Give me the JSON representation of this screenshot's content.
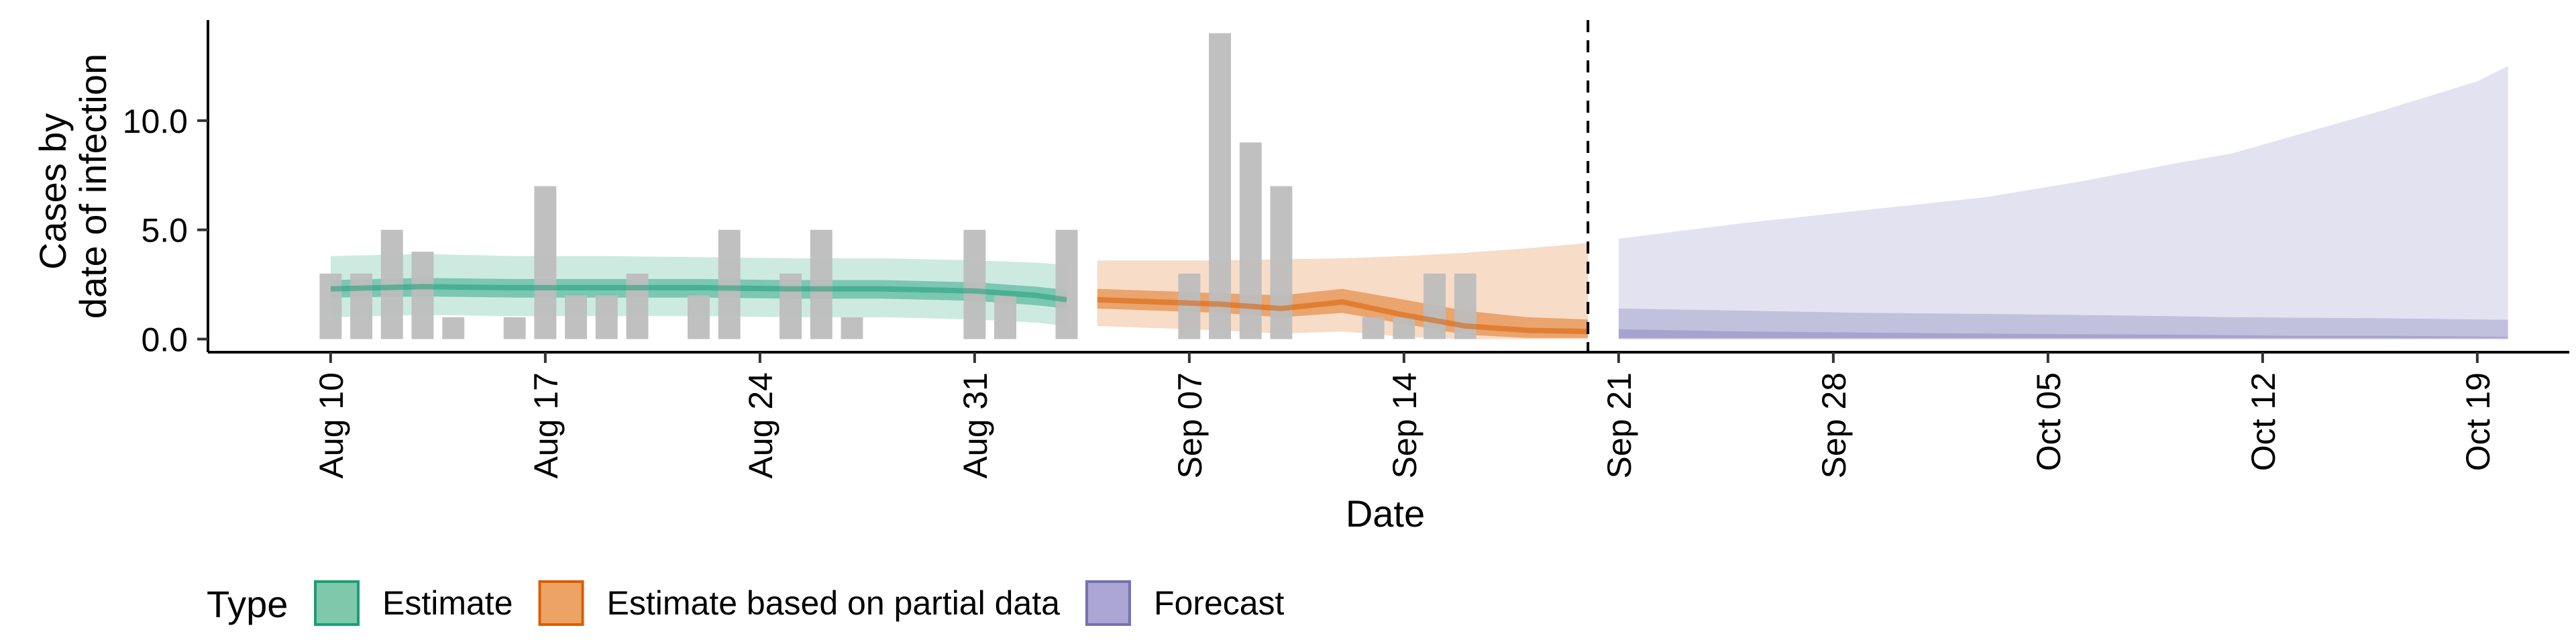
{
  "chart_data": {
    "type": "area",
    "xlabel": "Date",
    "ylabel": [
      "Cases by",
      "date of infection"
    ],
    "ylim": [
      -0.6,
      14.6
    ],
    "yticks": [
      0.0,
      5.0,
      10.0
    ],
    "ytick_labels": [
      "0.0",
      "5.0",
      "10.0"
    ],
    "xlim": [
      "2021-08-06",
      "2021-10-22"
    ],
    "xticks": [
      "2021-08-10",
      "2021-08-17",
      "2021-08-24",
      "2021-08-31",
      "2021-09-07",
      "2021-09-14",
      "2021-09-21",
      "2021-09-28",
      "2021-10-05",
      "2021-10-12",
      "2021-10-19"
    ],
    "xtick_labels": [
      "Aug 10",
      "Aug 17",
      "Aug 24",
      "Aug 31",
      "Sep 07",
      "Sep 14",
      "Sep 21",
      "Sep 28",
      "Oct 05",
      "Oct 12",
      "Oct 19"
    ],
    "vline_date": "2021-09-20",
    "legend": {
      "title": "Type",
      "position": "bottom",
      "items": [
        {
          "label": "Estimate",
          "fill": "#7FC8AC",
          "stroke": "#1B9E77"
        },
        {
          "label": "Estimate based on partial data",
          "fill": "#EEA366",
          "stroke": "#D95F02"
        },
        {
          "label": "Forecast",
          "fill": "#ABA6D3",
          "stroke": "#7570B3"
        }
      ]
    },
    "bars": {
      "color": "#BDBDBD",
      "dates": [
        "2021-08-10",
        "2021-08-11",
        "2021-08-12",
        "2021-08-13",
        "2021-08-14",
        "2021-08-15",
        "2021-08-16",
        "2021-08-17",
        "2021-08-18",
        "2021-08-19",
        "2021-08-20",
        "2021-08-21",
        "2021-08-22",
        "2021-08-23",
        "2021-08-24",
        "2021-08-25",
        "2021-08-26",
        "2021-08-27",
        "2021-08-28",
        "2021-08-29",
        "2021-08-30",
        "2021-08-31",
        "2021-09-01",
        "2021-09-02",
        "2021-09-03",
        "2021-09-04",
        "2021-09-05",
        "2021-09-06",
        "2021-09-07",
        "2021-09-08",
        "2021-09-09",
        "2021-09-10",
        "2021-09-11",
        "2021-09-12",
        "2021-09-13",
        "2021-09-14",
        "2021-09-15",
        "2021-09-16",
        "2021-09-17",
        "2021-09-18",
        "2021-09-19",
        "2021-09-20"
      ],
      "values": [
        3,
        3,
        5,
        4,
        1,
        0,
        1,
        7,
        2,
        2,
        3,
        0,
        2,
        5,
        0,
        3,
        5,
        1,
        0,
        0,
        0,
        5,
        2,
        0,
        5,
        0,
        0,
        0,
        3,
        14,
        9,
        7,
        0,
        0,
        1,
        1,
        3,
        3,
        0,
        0,
        0,
        0
      ]
    },
    "series": [
      {
        "name": "Estimate",
        "fill": "#1B9E77",
        "stroke": "#1B9E77",
        "dates": [
          "2021-08-10",
          "2021-08-13",
          "2021-08-16",
          "2021-08-19",
          "2021-08-22",
          "2021-08-25",
          "2021-08-28",
          "2021-08-31",
          "2021-09-02",
          "2021-09-03"
        ],
        "median": [
          2.3,
          2.4,
          2.35,
          2.35,
          2.35,
          2.3,
          2.3,
          2.2,
          2.0,
          1.8
        ],
        "lower_50": [
          1.9,
          1.95,
          1.9,
          1.9,
          1.9,
          1.85,
          1.85,
          1.75,
          1.55,
          1.4
        ],
        "upper_50": [
          2.7,
          2.8,
          2.75,
          2.75,
          2.75,
          2.7,
          2.7,
          2.6,
          2.4,
          2.25
        ],
        "lower_90": [
          1.0,
          1.1,
          1.05,
          1.05,
          1.05,
          1.0,
          1.0,
          0.9,
          0.75,
          0.6
        ],
        "upper_90": [
          3.8,
          3.9,
          3.8,
          3.8,
          3.75,
          3.7,
          3.7,
          3.6,
          3.5,
          3.4
        ]
      },
      {
        "name": "Estimate based on partial data",
        "fill": "#D95F02",
        "stroke": "#D95F02",
        "dates": [
          "2021-09-04",
          "2021-09-06",
          "2021-09-08",
          "2021-09-10",
          "2021-09-12",
          "2021-09-14",
          "2021-09-16",
          "2021-09-18",
          "2021-09-20"
        ],
        "median": [
          1.8,
          1.7,
          1.6,
          1.4,
          1.7,
          1.1,
          0.6,
          0.4,
          0.35
        ],
        "lower_50": [
          1.4,
          1.3,
          1.2,
          1.0,
          1.2,
          0.7,
          0.2,
          0.05,
          0.05
        ],
        "upper_50": [
          2.3,
          2.2,
          2.1,
          2.0,
          2.3,
          1.8,
          1.3,
          1.0,
          0.9
        ],
        "lower_90": [
          0.6,
          0.5,
          0.4,
          0.25,
          0.35,
          0.1,
          0.0,
          0.0,
          0.0
        ],
        "upper_90": [
          3.6,
          3.6,
          3.6,
          3.65,
          3.7,
          3.8,
          3.95,
          4.15,
          4.4
        ]
      },
      {
        "name": "Forecast",
        "fill": "#7570B3",
        "stroke": "#7570B3",
        "dates": [
          "2021-09-21",
          "2021-09-25",
          "2021-09-29",
          "2021-10-03",
          "2021-10-06",
          "2021-10-09",
          "2021-10-11",
          "2021-10-13",
          "2021-10-16",
          "2021-10-19",
          "2021-10-20"
        ],
        "lower_50": [
          0.05,
          0.05,
          0.05,
          0.05,
          0.05,
          0.05,
          0.05,
          0.05,
          0.05,
          0.05,
          0.05
        ],
        "upper_50": [
          0.45,
          0.35,
          0.3,
          0.25,
          0.22,
          0.2,
          0.18,
          0.15,
          0.15,
          0.12,
          0.1
        ],
        "lower_90": [
          0.0,
          0.0,
          0.0,
          0.0,
          0.0,
          0.0,
          0.0,
          0.0,
          0.0,
          0.0,
          0.0
        ],
        "upper_90_inner": [
          1.4,
          1.3,
          1.2,
          1.15,
          1.1,
          1.05,
          1.0,
          0.98,
          0.95,
          0.9,
          0.88
        ],
        "upper_90": [
          4.6,
          5.3,
          5.9,
          6.5,
          7.2,
          8.0,
          8.5,
          9.3,
          10.5,
          11.8,
          12.5
        ]
      }
    ]
  }
}
